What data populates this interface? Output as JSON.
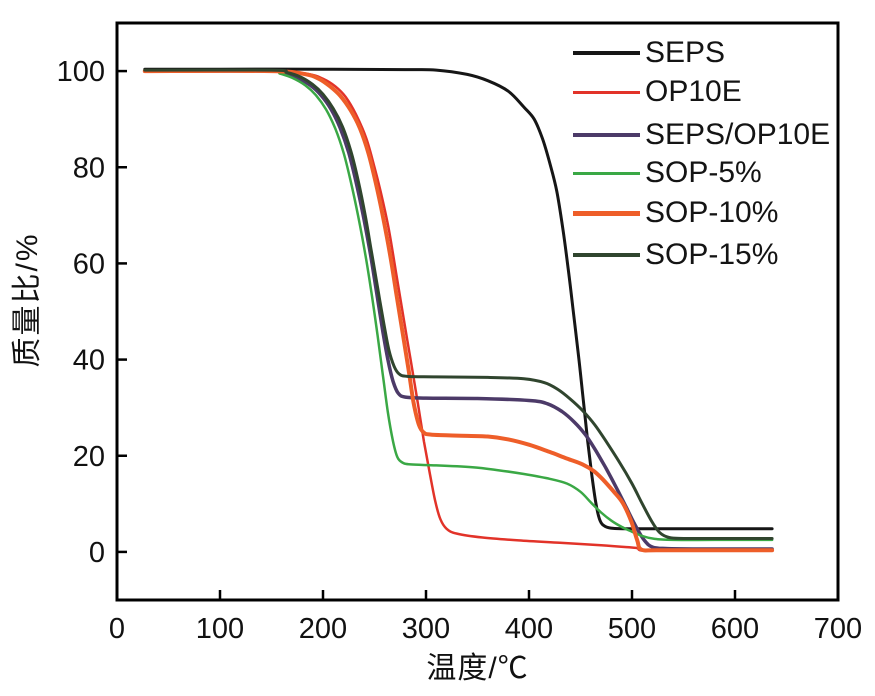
{
  "chart_data": {
    "type": "line",
    "title": "",
    "xlabel": "温度/℃",
    "ylabel": "质量比/%",
    "xlim": [
      0,
      700
    ],
    "ylim": [
      -10,
      110
    ],
    "x_ticks": [
      0,
      100,
      200,
      300,
      400,
      500,
      600,
      700
    ],
    "y_ticks": [
      0,
      20,
      40,
      60,
      80,
      100
    ],
    "grid": false,
    "legend_position": "top-right-inside",
    "background": "#ffffff",
    "axis_color": "#000000",
    "series": [
      {
        "name": "SEPS",
        "color": "#161616",
        "line_width": 3,
        "points": [
          [
            27,
            100.4
          ],
          [
            100,
            100.4
          ],
          [
            200,
            100.4
          ],
          [
            280,
            100.3
          ],
          [
            310,
            100.2
          ],
          [
            340,
            99.3
          ],
          [
            360,
            98
          ],
          [
            380,
            95.8
          ],
          [
            395,
            92.5
          ],
          [
            405,
            90
          ],
          [
            413,
            86
          ],
          [
            420,
            81
          ],
          [
            427,
            75
          ],
          [
            433,
            67
          ],
          [
            438,
            59
          ],
          [
            443,
            50
          ],
          [
            448,
            41
          ],
          [
            453,
            31
          ],
          [
            457,
            23
          ],
          [
            461,
            16
          ],
          [
            465,
            10
          ],
          [
            469,
            6.5
          ],
          [
            474,
            5.3
          ],
          [
            482,
            4.9
          ],
          [
            500,
            4.8
          ],
          [
            540,
            4.8
          ],
          [
            590,
            4.8
          ],
          [
            636,
            4.8
          ]
        ]
      },
      {
        "name": "OP10E",
        "color": "#e23329",
        "line_width": 2.5,
        "points": [
          [
            27,
            100
          ],
          [
            150,
            100
          ],
          [
            185,
            99.4
          ],
          [
            200,
            98.4
          ],
          [
            212,
            96.8
          ],
          [
            222,
            94.6
          ],
          [
            232,
            91
          ],
          [
            242,
            86
          ],
          [
            250,
            80
          ],
          [
            257,
            74
          ],
          [
            264,
            67
          ],
          [
            271,
            58
          ],
          [
            278,
            49
          ],
          [
            285,
            40
          ],
          [
            292,
            31
          ],
          [
            298,
            23
          ],
          [
            304,
            16
          ],
          [
            309,
            10.5
          ],
          [
            314,
            6.8
          ],
          [
            320,
            4.8
          ],
          [
            330,
            3.8
          ],
          [
            355,
            3
          ],
          [
            390,
            2.4
          ],
          [
            430,
            1.9
          ],
          [
            470,
            1.4
          ],
          [
            495,
            1
          ],
          [
            505,
            0.8
          ],
          [
            509,
            0.3
          ],
          [
            530,
            0.25
          ],
          [
            580,
            0.25
          ],
          [
            636,
            0.25
          ]
        ]
      },
      {
        "name": "SEPS/OP10E",
        "color": "#4c3a68",
        "line_width": 3.5,
        "points": [
          [
            27,
            100
          ],
          [
            150,
            100
          ],
          [
            162,
            99.5
          ],
          [
            175,
            98.6
          ],
          [
            188,
            97
          ],
          [
            198,
            95
          ],
          [
            208,
            92
          ],
          [
            217,
            88
          ],
          [
            225,
            83
          ],
          [
            232,
            77
          ],
          [
            239,
            70
          ],
          [
            246,
            62
          ],
          [
            252,
            54
          ],
          [
            258,
            46
          ],
          [
            263,
            40
          ],
          [
            268,
            35.5
          ],
          [
            273,
            33
          ],
          [
            280,
            32.2
          ],
          [
            300,
            32
          ],
          [
            350,
            31.9
          ],
          [
            400,
            31.5
          ],
          [
            418,
            30.8
          ],
          [
            432,
            29.2
          ],
          [
            444,
            27
          ],
          [
            455,
            24.3
          ],
          [
            465,
            21
          ],
          [
            475,
            17.3
          ],
          [
            485,
            13.3
          ],
          [
            495,
            9
          ],
          [
            504,
            5.2
          ],
          [
            512,
            2.4
          ],
          [
            520,
            1
          ],
          [
            535,
            0.7
          ],
          [
            580,
            0.6
          ],
          [
            636,
            0.6
          ]
        ]
      },
      {
        "name": "SOP-5%",
        "color": "#3aa845",
        "line_width": 2.5,
        "points": [
          [
            27,
            100
          ],
          [
            150,
            100
          ],
          [
            158,
            99.5
          ],
          [
            170,
            98.6
          ],
          [
            183,
            97
          ],
          [
            193,
            95
          ],
          [
            203,
            92
          ],
          [
            212,
            88
          ],
          [
            220,
            83
          ],
          [
            227,
            77
          ],
          [
            234,
            70
          ],
          [
            241,
            62
          ],
          [
            247,
            54
          ],
          [
            253,
            45
          ],
          [
            258,
            37
          ],
          [
            263,
            29
          ],
          [
            268,
            23
          ],
          [
            272,
            19.8
          ],
          [
            277,
            18.6
          ],
          [
            285,
            18.2
          ],
          [
            310,
            18
          ],
          [
            345,
            17.6
          ],
          [
            370,
            17
          ],
          [
            395,
            16.2
          ],
          [
            420,
            15.2
          ],
          [
            437,
            14.2
          ],
          [
            450,
            12.5
          ],
          [
            460,
            10.3
          ],
          [
            470,
            8.2
          ],
          [
            480,
            6.5
          ],
          [
            490,
            5.2
          ],
          [
            500,
            4.2
          ],
          [
            510,
            3.3
          ],
          [
            522,
            2.7
          ],
          [
            540,
            2.5
          ],
          [
            580,
            2.5
          ],
          [
            636,
            2.5
          ]
        ]
      },
      {
        "name": "SOP-10%",
        "color": "#ee5e29",
        "line_width": 4,
        "points": [
          [
            27,
            100
          ],
          [
            150,
            100
          ],
          [
            182,
            99.4
          ],
          [
            196,
            98.4
          ],
          [
            207,
            96.8
          ],
          [
            217,
            94.8
          ],
          [
            227,
            91.8
          ],
          [
            236,
            88
          ],
          [
            244,
            83
          ],
          [
            251,
            77
          ],
          [
            258,
            70
          ],
          [
            265,
            62
          ],
          [
            271,
            54
          ],
          [
            277,
            46
          ],
          [
            283,
            38
          ],
          [
            288,
            31
          ],
          [
            293,
            26.5
          ],
          [
            298,
            24.8
          ],
          [
            305,
            24.4
          ],
          [
            330,
            24.2
          ],
          [
            360,
            24
          ],
          [
            380,
            23.4
          ],
          [
            400,
            22.3
          ],
          [
            420,
            20.8
          ],
          [
            437,
            19.4
          ],
          [
            452,
            18.2
          ],
          [
            463,
            16.8
          ],
          [
            472,
            15
          ],
          [
            482,
            12.6
          ],
          [
            491,
            10.2
          ],
          [
            499,
            6.5
          ],
          [
            505,
            2.5
          ],
          [
            509,
            0.5
          ],
          [
            525,
            0.35
          ],
          [
            580,
            0.35
          ],
          [
            636,
            0.35
          ]
        ]
      },
      {
        "name": "SOP-15%",
        "color": "#30452e",
        "line_width": 3,
        "points": [
          [
            27,
            100.2
          ],
          [
            150,
            100.2
          ],
          [
            165,
            99.7
          ],
          [
            178,
            98.8
          ],
          [
            190,
            97.2
          ],
          [
            200,
            95.2
          ],
          [
            210,
            92.2
          ],
          [
            219,
            88.4
          ],
          [
            227,
            83.4
          ],
          [
            234,
            77.4
          ],
          [
            241,
            70
          ],
          [
            247,
            62.5
          ],
          [
            253,
            55
          ],
          [
            259,
            47.5
          ],
          [
            264,
            42
          ],
          [
            269,
            38.6
          ],
          [
            274,
            37
          ],
          [
            282,
            36.5
          ],
          [
            310,
            36.4
          ],
          [
            360,
            36.3
          ],
          [
            395,
            36
          ],
          [
            415,
            35.2
          ],
          [
            428,
            33.8
          ],
          [
            440,
            31.8
          ],
          [
            452,
            29.4
          ],
          [
            464,
            26.4
          ],
          [
            476,
            22.6
          ],
          [
            488,
            18.6
          ],
          [
            500,
            14.2
          ],
          [
            510,
            10
          ],
          [
            519,
            6.4
          ],
          [
            527,
            4
          ],
          [
            536,
            3
          ],
          [
            550,
            2.8
          ],
          [
            590,
            2.8
          ],
          [
            636,
            2.8
          ]
        ]
      }
    ]
  }
}
